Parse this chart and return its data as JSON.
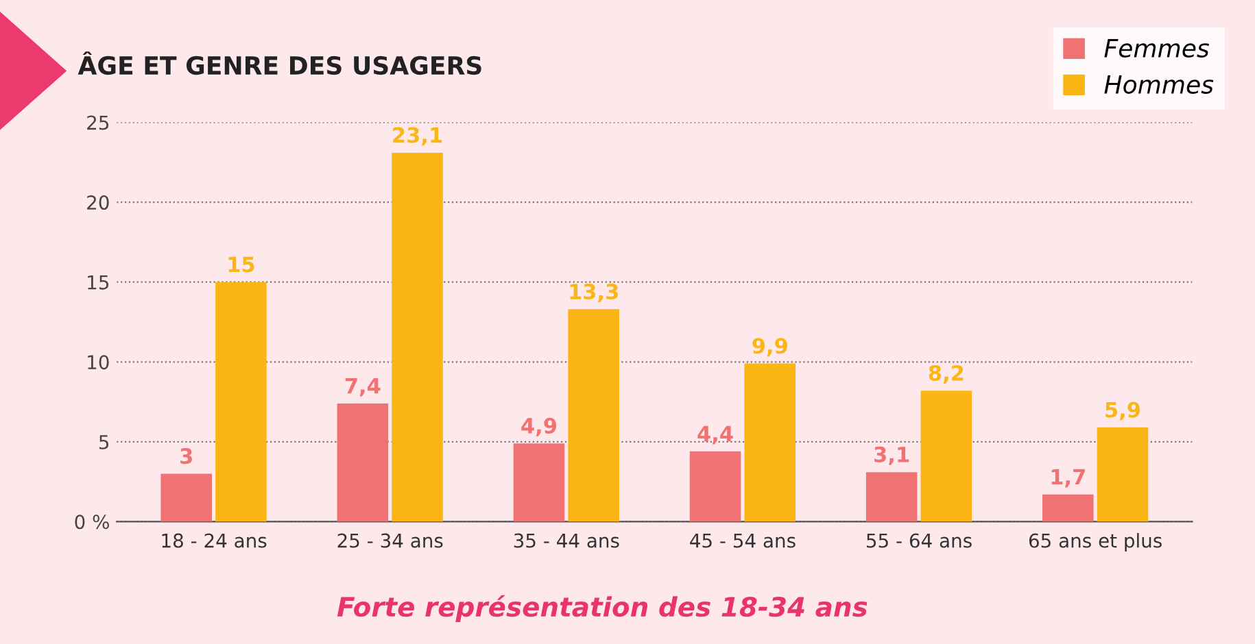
{
  "chart_data": {
    "type": "bar",
    "title": "ÂGE ET GENRE DES USAGERS",
    "categories": [
      "18 - 24 ans",
      "25 - 34 ans",
      "35 - 44 ans",
      "45 - 54 ans",
      "55 - 64 ans",
      "65 ans et plus"
    ],
    "series": [
      {
        "name": "Femmes",
        "color": "#f07272",
        "values": [
          3,
          7.4,
          4.9,
          4.4,
          3.1,
          1.7
        ],
        "value_labels": [
          "3",
          "7,4",
          "4,9",
          "4,4",
          "3,1",
          "1,7"
        ]
      },
      {
        "name": "Hommes",
        "color": "#fbb616",
        "values": [
          15,
          23.1,
          13.3,
          9.9,
          8.2,
          5.9
        ],
        "value_labels": [
          "15",
          "23,1",
          "13,3",
          "9,9",
          "8,2",
          "5,9"
        ]
      }
    ],
    "ylim": [
      0,
      25
    ],
    "yticks": [
      {
        "value": 0,
        "label": "0 %"
      },
      5,
      10,
      15,
      20,
      25
    ],
    "grid": "y",
    "legend": "top right",
    "annotations": [
      "Forte représentation des 18-34 ans"
    ]
  }
}
